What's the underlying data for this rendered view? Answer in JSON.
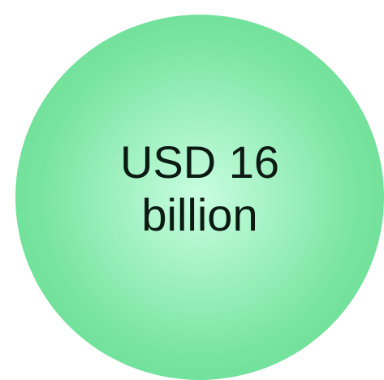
{
  "stat": {
    "line1": "USD 16",
    "line2": "billion"
  },
  "colors": {
    "circle_center": "#c8fde0",
    "circle_edge": "#5fd889",
    "text": "#0b1a12",
    "background": "#ffffff"
  }
}
